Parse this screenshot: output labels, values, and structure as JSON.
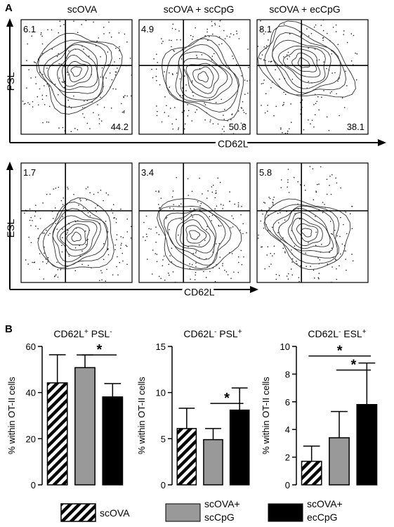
{
  "panel_labels": [
    "A",
    "B"
  ],
  "flow_panel": {
    "columns": [
      "scOVA",
      "scOVA + scCpG",
      "scOVA + ecCpG"
    ],
    "rows": [
      {
        "y_axis": "PSL",
        "x_axis": "CD62L",
        "upper_left": [
          "6.1",
          "4.9",
          "8.1"
        ],
        "lower_right": [
          "44.2",
          "50.8",
          "38.1"
        ]
      },
      {
        "y_axis": "ESL",
        "x_axis": "CD62L",
        "upper_left": [
          "1.7",
          "3.4",
          "5.8"
        ],
        "lower_right": []
      }
    ]
  },
  "legend": [
    {
      "label": "scOVA",
      "pattern": "hatch",
      "color": "#ffffff"
    },
    {
      "label": "scOVA+\nscCpG",
      "pattern": "solid",
      "color": "#999999"
    },
    {
      "label": "scOVA+\necCpG",
      "pattern": "solid",
      "color": "#000000"
    }
  ],
  "chart_data": [
    {
      "type": "bar",
      "title_parts": [
        {
          "t": "CD62L"
        },
        {
          "t": "+",
          "sup": true
        },
        {
          "t": " PSL"
        },
        {
          "t": "-",
          "sup": true
        }
      ],
      "ylabel": "% within  OT-II cells",
      "ylim": [
        0,
        60
      ],
      "yticks": [
        "0",
        "20",
        "40",
        "60"
      ],
      "categories": [
        "scOVA",
        "scOVA+scCpG",
        "scOVA+ecCpG"
      ],
      "values": [
        44.2,
        50.8,
        38.1
      ],
      "errors": [
        12.2,
        5.5,
        5.8
      ],
      "significance": [
        {
          "from": 1,
          "to": 2,
          "label": "*"
        }
      ]
    },
    {
      "type": "bar",
      "title_parts": [
        {
          "t": "CD62L"
        },
        {
          "t": "-",
          "sup": true
        },
        {
          "t": " PSL"
        },
        {
          "t": "+",
          "sup": true
        }
      ],
      "ylabel": "% within  OT-II cells",
      "ylim": [
        0,
        15
      ],
      "yticks": [
        "0",
        "5",
        "10",
        "15"
      ],
      "categories": [
        "scOVA",
        "scOVA+scCpG",
        "scOVA+ecCpG"
      ],
      "values": [
        6.1,
        4.9,
        8.1
      ],
      "errors": [
        2.2,
        1.2,
        2.4
      ],
      "significance": [
        {
          "from": 1,
          "to": 2,
          "label": "*"
        }
      ]
    },
    {
      "type": "bar",
      "title_parts": [
        {
          "t": "CD62L"
        },
        {
          "t": "-",
          "sup": true
        },
        {
          "t": " ESL"
        },
        {
          "t": "+",
          "sup": true
        }
      ],
      "ylabel": "% within  OT-II cells",
      "ylim": [
        0,
        10
      ],
      "yticks": [
        "0",
        "2",
        "4",
        "6",
        "8",
        "10"
      ],
      "categories": [
        "scOVA",
        "scOVA+scCpG",
        "scOVA+ecCpG"
      ],
      "values": [
        1.7,
        3.4,
        5.8
      ],
      "errors": [
        1.1,
        1.9,
        3.0
      ],
      "significance": [
        {
          "from": 0,
          "to": 2,
          "label": "*"
        },
        {
          "from": 1,
          "to": 2,
          "label": "*"
        }
      ]
    }
  ]
}
